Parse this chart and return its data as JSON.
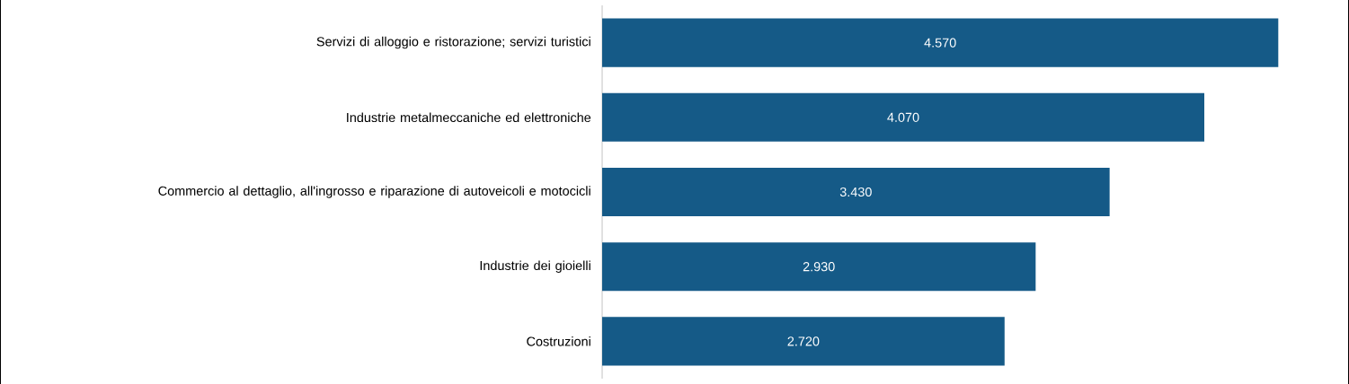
{
  "chart_data": {
    "type": "bar",
    "orientation": "horizontal",
    "color": "#155a87",
    "categories": [
      "Servizi di alloggio e ristorazione; servizi turistici",
      "Industrie metalmeccaniche ed elettroniche",
      "Commercio al dettaglio, all'ingrosso e riparazione di autoveicoli e motocicli",
      "Industrie dei gioielli",
      "Costruzioni"
    ],
    "values": [
      4570,
      4070,
      3430,
      2930,
      2720
    ],
    "value_labels": [
      "4.570",
      "4.070",
      "3.430",
      "2.930",
      "2.720"
    ]
  }
}
